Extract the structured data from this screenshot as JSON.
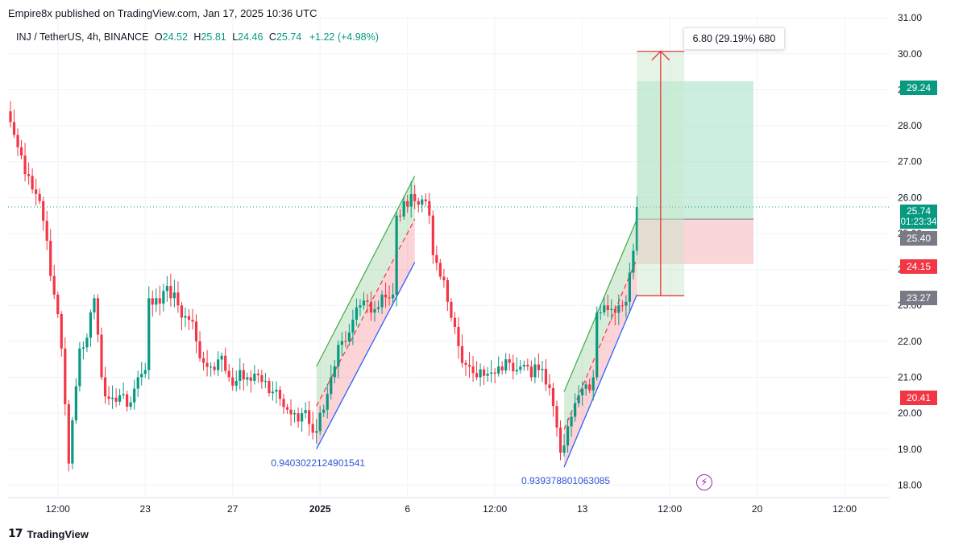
{
  "header": {
    "published": "Empire8x published on TradingView.com, Jan 17, 2025 10:36 UTC"
  },
  "legend": {
    "symbol": "INJ / TetherUS, 4h, BINANCE",
    "open_label": "O",
    "open": "24.52",
    "high_label": "H",
    "high": "25.81",
    "low_label": "L",
    "low": "24.46",
    "close_label": "C",
    "close": "25.74",
    "change": "+1.22 (+4.98%)"
  },
  "measure": {
    "text": "6.80 (29.19%) 680"
  },
  "price_tags": {
    "target": "29.24",
    "current": "25.74",
    "countdown": "01:23:34",
    "entry": "25.40",
    "stop": "24.15",
    "measure_low": "23.27",
    "low": "20.41"
  },
  "footer": {
    "brand": "TradingView",
    "logo_glyph": "17"
  },
  "icons": {
    "bolt": "lightning-icon"
  },
  "colors": {
    "up": "#089981",
    "down": "#f23645",
    "channel_upper": "#4caf50",
    "channel_lower": "#2962ff",
    "measure": "#e53935",
    "target_zone": "#8fd9b5",
    "stop_zone": "#f8b4b8",
    "annotation_text": "#2f55d4",
    "price_line": "#089981"
  },
  "chart_data": {
    "type": "candlestick",
    "title": "INJ / TetherUS, 4h, BINANCE",
    "ylim": [
      17.65,
      31.05
    ],
    "y_ticks": [
      18,
      19,
      20,
      21,
      22,
      23,
      24,
      25,
      26,
      27,
      28,
      29,
      30,
      31
    ],
    "y_tick_labels": [
      "18.00",
      "19.00",
      "20.00",
      "21.00",
      "22.00",
      "23.00",
      "24.00",
      "25.00",
      "26.00",
      "27.00",
      "28.00",
      "29.00",
      "30.00",
      "31.00"
    ],
    "x_labels": [
      {
        "bar": 13,
        "text": "12:00"
      },
      {
        "bar": 37,
        "text": "23"
      },
      {
        "bar": 61,
        "text": "27"
      },
      {
        "bar": 85,
        "text": "2025"
      },
      {
        "bar": 109,
        "text": "6"
      },
      {
        "bar": 133,
        "text": "12:00"
      },
      {
        "bar": 157,
        "text": "13"
      },
      {
        "bar": 181,
        "text": "12:00"
      },
      {
        "bar": 205,
        "text": "20"
      },
      {
        "bar": 229,
        "text": "12:00"
      }
    ],
    "key_points": [
      {
        "bar": 0,
        "price": 28.1
      },
      {
        "bar": 2,
        "price": 27.4
      },
      {
        "bar": 5,
        "price": 26.6
      },
      {
        "bar": 8,
        "price": 25.9
      },
      {
        "bar": 10,
        "price": 24.8
      },
      {
        "bar": 12,
        "price": 23.3
      },
      {
        "bar": 14,
        "price": 21.8
      },
      {
        "bar": 16,
        "price": 18.6
      },
      {
        "bar": 17,
        "price": 19.8
      },
      {
        "bar": 19,
        "price": 21.8
      },
      {
        "bar": 21,
        "price": 22.1
      },
      {
        "bar": 23,
        "price": 23.2
      },
      {
        "bar": 25,
        "price": 21.0
      },
      {
        "bar": 27,
        "price": 20.4
      },
      {
        "bar": 30,
        "price": 20.5
      },
      {
        "bar": 33,
        "price": 20.3
      },
      {
        "bar": 35,
        "price": 21.0
      },
      {
        "bar": 37,
        "price": 21.2
      },
      {
        "bar": 38,
        "price": 23.2
      },
      {
        "bar": 40,
        "price": 23.2
      },
      {
        "bar": 42,
        "price": 23.4
      },
      {
        "bar": 44,
        "price": 23.2
      },
      {
        "bar": 46,
        "price": 23.0
      },
      {
        "bar": 49,
        "price": 22.6
      },
      {
        "bar": 51,
        "price": 22.0
      },
      {
        "bar": 53,
        "price": 21.4
      },
      {
        "bar": 56,
        "price": 21.2
      },
      {
        "bar": 58,
        "price": 21.6
      },
      {
        "bar": 60,
        "price": 21.0
      },
      {
        "bar": 62,
        "price": 20.9
      },
      {
        "bar": 65,
        "price": 21.0
      },
      {
        "bar": 67,
        "price": 21.1
      },
      {
        "bar": 70,
        "price": 20.9
      },
      {
        "bar": 72,
        "price": 20.6
      },
      {
        "bar": 74,
        "price": 20.4
      },
      {
        "bar": 76,
        "price": 20.1
      },
      {
        "bar": 78,
        "price": 20.0
      },
      {
        "bar": 80,
        "price": 20.0
      },
      {
        "bar": 82,
        "price": 19.7
      },
      {
        "bar": 84,
        "price": 19.5
      },
      {
        "bar": 86,
        "price": 20.1
      },
      {
        "bar": 88,
        "price": 21.0
      },
      {
        "bar": 90,
        "price": 21.9
      },
      {
        "bar": 92,
        "price": 22.0
      },
      {
        "bar": 94,
        "price": 22.6
      },
      {
        "bar": 96,
        "price": 23.0
      },
      {
        "bar": 98,
        "price": 23.1
      },
      {
        "bar": 100,
        "price": 22.9
      },
      {
        "bar": 102,
        "price": 23.3
      },
      {
        "bar": 104,
        "price": 23.2
      },
      {
        "bar": 105,
        "price": 23.3
      },
      {
        "bar": 106,
        "price": 25.5
      },
      {
        "bar": 108,
        "price": 25.9
      },
      {
        "bar": 110,
        "price": 26.1
      },
      {
        "bar": 112,
        "price": 25.8
      },
      {
        "bar": 114,
        "price": 25.9
      },
      {
        "bar": 115,
        "price": 25.5
      },
      {
        "bar": 116,
        "price": 24.4
      },
      {
        "bar": 118,
        "price": 23.8
      },
      {
        "bar": 120,
        "price": 23.1
      },
      {
        "bar": 122,
        "price": 22.4
      },
      {
        "bar": 124,
        "price": 21.4
      },
      {
        "bar": 126,
        "price": 21.3
      },
      {
        "bar": 128,
        "price": 21.0
      },
      {
        "bar": 131,
        "price": 21.1
      },
      {
        "bar": 134,
        "price": 21.3
      },
      {
        "bar": 137,
        "price": 21.4
      },
      {
        "bar": 140,
        "price": 21.3
      },
      {
        "bar": 143,
        "price": 21.0
      },
      {
        "bar": 145,
        "price": 21.2
      },
      {
        "bar": 147,
        "price": 20.8
      },
      {
        "bar": 149,
        "price": 20.2
      },
      {
        "bar": 150,
        "price": 19.6
      },
      {
        "bar": 151,
        "price": 18.9
      },
      {
        "bar": 152,
        "price": 19.1
      },
      {
        "bar": 154,
        "price": 19.9
      },
      {
        "bar": 156,
        "price": 20.5
      },
      {
        "bar": 158,
        "price": 20.8
      },
      {
        "bar": 160,
        "price": 21.0
      },
      {
        "bar": 161,
        "price": 22.8
      },
      {
        "bar": 163,
        "price": 23.0
      },
      {
        "bar": 165,
        "price": 22.9
      },
      {
        "bar": 167,
        "price": 23.0
      },
      {
        "bar": 169,
        "price": 23.1
      },
      {
        "bar": 171,
        "price": 24.52
      },
      {
        "bar": 172,
        "price": 25.74
      }
    ],
    "channels": [
      {
        "name": "",
        "label": "0.9403022124901541",
        "lower": [
          {
            "bar": 84,
            "price": 19.0
          },
          {
            "bar": 111,
            "price": 24.2
          }
        ],
        "upper": [
          {
            "bar": 84,
            "price": 21.3
          },
          {
            "bar": 111,
            "price": 26.6
          }
        ],
        "mid": [
          {
            "bar": 84,
            "price": 20.2
          },
          {
            "bar": 111,
            "price": 25.4
          }
        ]
      },
      {
        "name": "",
        "label": "0.939378801063085",
        "lower": [
          {
            "bar": 152,
            "price": 18.5
          },
          {
            "bar": 172,
            "price": 23.3
          }
        ],
        "upper": [
          {
            "bar": 152,
            "price": 20.6
          },
          {
            "bar": 172,
            "price": 25.4
          }
        ],
        "mid": [
          {
            "bar": 152,
            "price": 19.55
          },
          {
            "bar": 172,
            "price": 24.3
          }
        ]
      }
    ],
    "position": {
      "start_bar": 172,
      "end_bar": 204,
      "entry": 25.4,
      "target": 29.24,
      "stop": 24.15
    },
    "measure_tool": {
      "start_bar": 172,
      "end_bar": 185,
      "from": 23.27,
      "to": 30.07,
      "text": "6.80 (29.19%) 680"
    },
    "current_price": 25.74
  }
}
